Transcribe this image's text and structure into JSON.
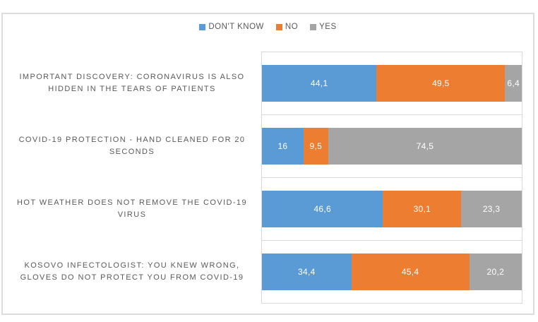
{
  "chart_data": {
    "type": "bar",
    "orientation": "horizontal",
    "stacked": true,
    "legend_position": "top",
    "xlim": [
      0,
      100
    ],
    "gridlines": "category-separator-lines",
    "decimal_separator": ",",
    "categories": [
      "IMPORTANT DISCOVERY: CORONAVIRUS IS ALSO HIDDEN IN THE TEARS OF PATIENTS",
      "COVID-19 PROTECTION - HAND CLEANED FOR 20 SECONDS",
      "HOT WEATHER DOES NOT REMOVE THE COVID-19 VIRUS",
      "KOSOVO INFECTOLOGIST: YOU KNEW WRONG, GLOVES DO NOT PROTECT YOU FROM COVID-19"
    ],
    "series": [
      {
        "name": "DON'T KNOW",
        "color": "#5B9BD5",
        "values": [
          44.1,
          16,
          46.6,
          34.4
        ],
        "labels": [
          "44,1",
          "16",
          "46,6",
          "34,4"
        ]
      },
      {
        "name": "NO",
        "color": "#ED7D31",
        "values": [
          49.5,
          9.5,
          30.1,
          45.4
        ],
        "labels": [
          "49,5",
          "9,5",
          "30,1",
          "45,4"
        ]
      },
      {
        "name": "YES",
        "color": "#A5A5A5",
        "values": [
          6.4,
          74.5,
          23.3,
          20.2
        ],
        "labels": [
          "6,4",
          "74,5",
          "23,3",
          "20,2"
        ]
      }
    ]
  },
  "colors": {
    "frame_border": "#dcdcdc",
    "plot_border": "#d9d9d9",
    "label_text": "#595959",
    "value_text": "#ffffff",
    "background": "#ffffff"
  }
}
